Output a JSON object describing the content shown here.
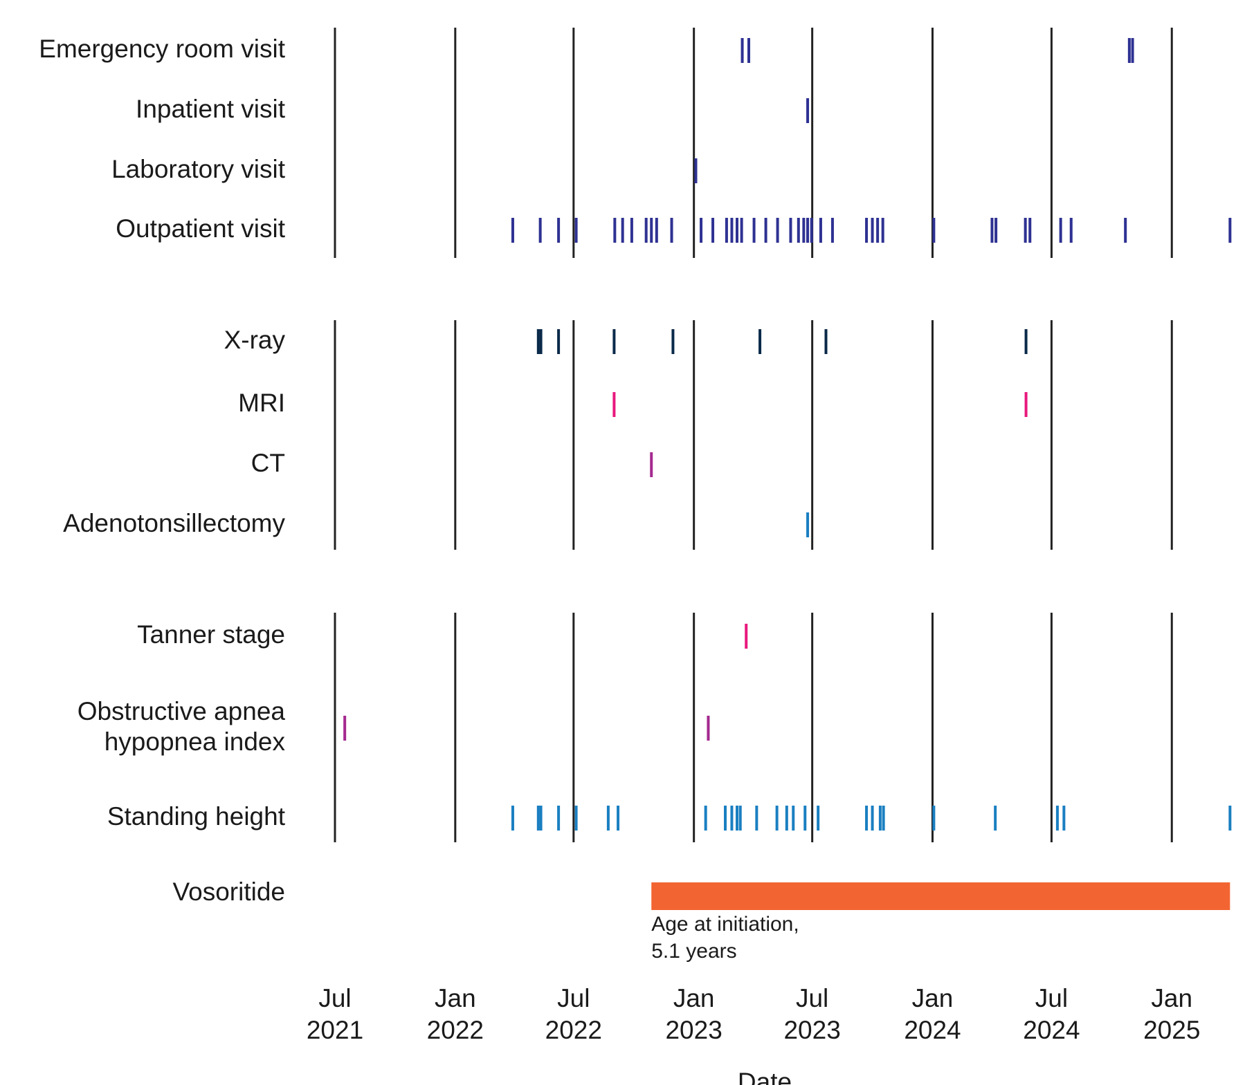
{
  "chart_data": {
    "type": "event_timeline",
    "xlabel": "Date",
    "xlim": [
      "2021-07-01",
      "2025-04-06"
    ],
    "x_ticks": [
      {
        "date": "2021-07-01",
        "label": [
          "Jul",
          "2021"
        ]
      },
      {
        "date": "2022-01-01",
        "label": [
          "Jan",
          "2022"
        ]
      },
      {
        "date": "2022-07-01",
        "label": [
          "Jul",
          "2022"
        ]
      },
      {
        "date": "2023-01-01",
        "label": [
          "Jan",
          "2023"
        ]
      },
      {
        "date": "2023-07-01",
        "label": [
          "Jul",
          "2023"
        ]
      },
      {
        "date": "2024-01-01",
        "label": [
          "Jan",
          "2024"
        ]
      },
      {
        "date": "2024-07-01",
        "label": [
          "Jul",
          "2024"
        ]
      },
      {
        "date": "2025-01-01",
        "label": [
          "Jan",
          "2025"
        ]
      }
    ],
    "grid": "vertical lines at x ticks",
    "groups": [
      {
        "rows": [
          {
            "label": [
              "Emergency room visit"
            ],
            "color": "#2e3192",
            "events": [
              "2023-03-16",
              "2023-03-26",
              "2024-10-28",
              "2024-11-02"
            ]
          },
          {
            "label": [
              "Inpatient visit"
            ],
            "color": "#2e3192",
            "events": [
              "2023-06-24"
            ]
          },
          {
            "label": [
              "Laboratory visit"
            ],
            "color": "#2e3192",
            "events": [
              "2023-01-04"
            ]
          },
          {
            "label": [
              "Outpatient visit"
            ],
            "color": "#2e3192",
            "events": [
              "2022-03-30",
              "2022-05-11",
              "2022-06-08",
              "2022-07-05",
              "2022-09-02",
              "2022-09-14",
              "2022-09-28",
              "2022-10-20",
              "2022-10-28",
              "2022-11-05",
              "2022-11-28",
              "2023-01-12",
              "2023-01-30",
              "2023-02-20",
              "2023-02-28",
              "2023-03-08",
              "2023-03-15",
              "2023-04-03",
              "2023-04-21",
              "2023-05-09",
              "2023-05-29",
              "2023-06-10",
              "2023-06-18",
              "2023-06-24",
              "2023-06-30",
              "2023-07-14",
              "2023-08-01",
              "2023-09-22",
              "2023-10-01",
              "2023-10-09",
              "2023-10-17",
              "2024-01-03",
              "2024-04-01",
              "2024-04-07",
              "2024-05-22",
              "2024-05-29",
              "2024-07-15",
              "2024-07-31",
              "2024-10-22",
              "2025-03-31"
            ]
          }
        ]
      },
      {
        "rows": [
          {
            "label": [
              "X-ray"
            ],
            "color": "#0b2a4a",
            "events": [
              "2022-05-08",
              "2022-05-12",
              "2022-06-08",
              "2022-09-01",
              "2022-11-30",
              "2023-04-12",
              "2023-07-22",
              "2024-05-23"
            ]
          },
          {
            "label": [
              "MRI"
            ],
            "color": "#e8197d",
            "events": [
              "2022-09-01",
              "2024-05-23"
            ]
          },
          {
            "label": [
              "CT"
            ],
            "color": "#a4298f",
            "events": [
              "2022-10-28"
            ]
          },
          {
            "label": [
              "Adenotonsillectomy"
            ],
            "color": "#1a7fc1",
            "events": [
              "2023-06-24"
            ]
          }
        ]
      },
      {
        "rows": [
          {
            "label": [
              "Tanner stage"
            ],
            "color": "#e8197d",
            "events": [
              "2023-03-22"
            ]
          },
          {
            "label": [
              "Obstructive apnea",
              "hypopnea index"
            ],
            "color": "#a4298f",
            "events": [
              "2021-07-16",
              "2023-01-23"
            ]
          },
          {
            "label": [
              "Standing height"
            ],
            "color": "#1a7fc1",
            "events": [
              "2022-03-30",
              "2022-05-08",
              "2022-05-12",
              "2022-06-08",
              "2022-07-05",
              "2022-08-23",
              "2022-09-07",
              "2023-01-19",
              "2023-02-18",
              "2023-02-28",
              "2023-03-08",
              "2023-03-13",
              "2023-04-07",
              "2023-05-08",
              "2023-05-23",
              "2023-06-02",
              "2023-06-20",
              "2023-07-10",
              "2023-09-22",
              "2023-10-01",
              "2023-10-13",
              "2023-10-18",
              "2024-01-03",
              "2024-04-06",
              "2024-07-10",
              "2024-07-20",
              "2025-03-31"
            ]
          }
        ]
      }
    ],
    "treatment": {
      "label": [
        "Vosoritide"
      ],
      "color": "#f26532",
      "start": "2022-10-28",
      "end": "2025-03-31",
      "annotation": [
        "Age at initiation,",
        "5.1 years"
      ]
    }
  }
}
